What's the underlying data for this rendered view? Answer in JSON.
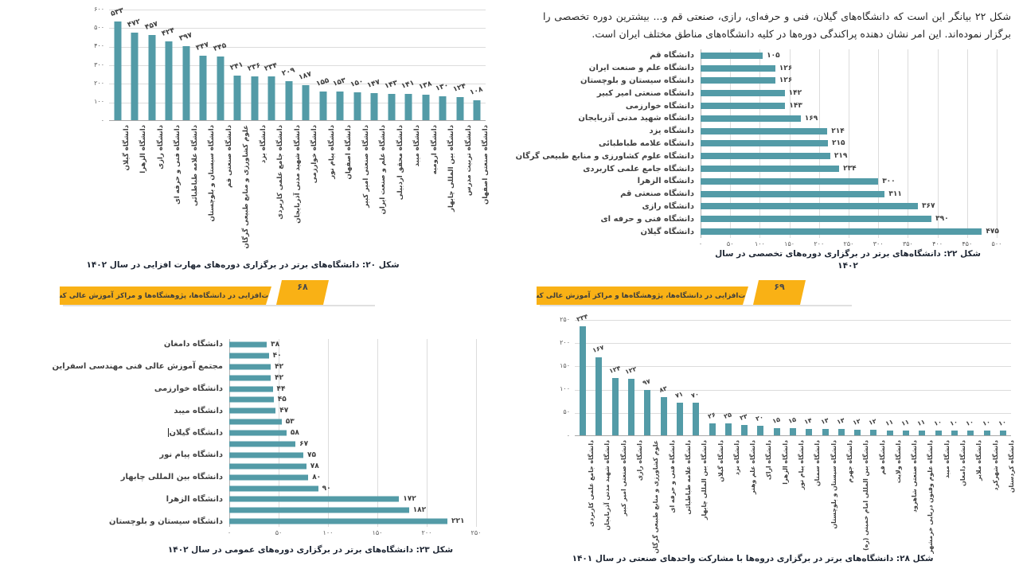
{
  "intro_text": "شکل ۲۲ بیانگر این است که دانشگاه‌های گیلان، فنی و حرفه‌ای، رازی، صنعتی قم و... بیشترین دوره تخصصی را برگزار نموده‌اند. این امر نشان دهنده پراکندگی دوره‌ها در کلیه دانشگاه‌های مناطق مختلف ایران است.",
  "banners": {
    "label": "مهارت‌افزایی در دانشگاه‌ها، پژوهشگاه‌ها و مراکز آموزش عالی کشور",
    "left": {
      "page": "۶۸"
    },
    "right": {
      "page": "۶۹"
    },
    "color": "#F9B115"
  },
  "chart_data": [
    {
      "id": "fig20",
      "type": "bar",
      "orientation": "vertical",
      "title": "شکل ۲۰: دانشگاه‌های برتر در برگزاری دوره‌های مهارت افزایی در سال ۱۴۰۲",
      "categories": [
        "دانشگاه گیلان",
        "دانشگاه الزهرا",
        "دانشگاه رازی",
        "دانشگاه فنی و حرفه ای",
        "دانشگاه علامه طباطبائی",
        "دانشگاه سیستان و بلوچستان",
        "دانشگاه صنعتی قم",
        "علوم کشاورزی و منابع طبیعی گرگان",
        "دانشگاه یزد",
        "دانشگاه جامع علمی کاربردی",
        "دانشگاه شهید مدنی آذربایجان",
        "دانشگاه خوارزمی",
        "دانشگاه پیام نور",
        "دانشگاه اصفهان",
        "دانشگاه صنعتی امیر کبیر",
        "دانشگاه علم و صنعت ایران",
        "دانشگاه محقق اردبیلی",
        "دانشگاه میبد",
        "دانشگاه ارومیه",
        "دانشگاه بین المللی چابهار",
        "دانشگاه تربیت مدرس",
        "دانشگاه صنعتی اصفهان"
      ],
      "values": [
        533,
        472,
        457,
        424,
        397,
        347,
        345,
        241,
        236,
        234,
        209,
        187,
        155,
        153,
        150,
        147,
        143,
        141,
        138,
        130,
        124,
        108
      ],
      "ylim": [
        0,
        600
      ],
      "ytick_step": 100,
      "ytick_labels": [
        "۰",
        "۱۰۰",
        "۲۰۰",
        "۳۰۰",
        "۴۰۰",
        "۵۰۰",
        "۶۰۰"
      ],
      "grid": true,
      "bar_color": "#539BA7"
    },
    {
      "id": "fig22",
      "type": "bar",
      "orientation": "horizontal",
      "title": "شکل ۲۲: دانشگاه‌های برتر در برگزاری دوره‌های تخصصی در سال ۱۴۰۲",
      "title_lines": [
        "شکل ۲۲: دانشگاه‌های برتر در برگزاری دوره‌های  تخصصی در سال",
        "۱۴۰۲"
      ],
      "categories": [
        "دانشگاه قم",
        "دانشگاه علم و صنعت ایران",
        "دانشگاه سیستان و بلوچستان",
        "دانشگاه صنعتی امیر کبیر",
        "دانشگاه خوارزمی",
        "دانشگاه شهید مدنی آذربایجان",
        "دانشگاه یزد",
        "دانشگاه علامه طباطبائی",
        "دانشگاه علوم کشاورزی و منابع طبیعی گرگان",
        "دانشگاه جامع علمی کاربردی",
        "دانشگاه الزهرا",
        "دانشگاه صنعتی قم",
        "دانشگاه رازی",
        "دانشگاه فنی و حرفه ای",
        "دانشگاه گیلان"
      ],
      "values": [
        105,
        126,
        126,
        142,
        143,
        169,
        214,
        215,
        219,
        234,
        300,
        311,
        367,
        390,
        475
      ],
      "xlim": [
        0,
        500
      ],
      "xtick_step": 50,
      "xtick_labels": [
        "۰",
        "۵۰",
        "۱۰۰",
        "۱۵۰",
        "۲۰۰",
        "۲۵۰",
        "۳۰۰",
        "۳۵۰",
        "۴۰۰",
        "۴۵۰",
        "۵۰۰"
      ],
      "grid": true,
      "bar_color": "#539BA7"
    },
    {
      "id": "fig23",
      "type": "bar",
      "orientation": "horizontal",
      "title": "شکل ۲۳: دانشگاه‌های برتر در برگزاری دوره‌های عمومی در سال ۱۴۰۲",
      "categories": [
        "دانشگاه دامغان",
        "",
        "مجتمع آموزش عالی فنی مهندسی اسفراین",
        "",
        "دانشگاه خوارزمی",
        "",
        "دانشگاه میبد",
        "",
        "دانشگاه گیلان",
        "",
        "دانشگاه پیام نور",
        "",
        "دانشگاه بین المللی چابهار",
        "",
        "دانشگاه الزهرا",
        "",
        "دانشگاه سیستان و بلوچستان"
      ],
      "values": [
        38,
        40,
        42,
        42,
        44,
        45,
        47,
        53,
        58,
        67,
        75,
        78,
        80,
        90,
        172,
        182,
        221
      ],
      "xlim": [
        0,
        250
      ],
      "xtick_step": 50,
      "xtick_labels": [
        "۰",
        "۵۰",
        "۱۰۰",
        "۱۵۰",
        "۲۰۰",
        "۲۵۰"
      ],
      "text_cursor_after_index": 8,
      "grid": true,
      "bar_color": "#539BA7"
    },
    {
      "id": "fig28",
      "type": "bar",
      "orientation": "vertical",
      "title": "شکل ۲۸: دانشگاه‌های برتر در برگزاری دروه‌ها با مشارکت واحدهای صنعتی در سال ۱۴۰۱",
      "categories": [
        "دانشگاه جامع علمی کاربردی",
        "دانشگاه شهید مدنی آذربایجان",
        "دانشگاه صنعتی امیر کبیر",
        "دانشگاه رازی",
        "علوم کشاورزی و منابع طبیعی گرگان",
        "دانشگاه فنی و حرفه ای",
        "دانشگاه علامه طباطبائی",
        "دانشگاه بین المللی چابهار",
        "دانشگاه گیلان",
        "دانشگاه یزد",
        "دانشگاه علم وهنر",
        "دانشگاه اراک",
        "دانشگاه الزهرا",
        "دانشگاه پیام نور",
        "دانشگاه سمنان",
        "دانشگاه سیستان و بلوچستان",
        "دانشگاه جهرم",
        "دانشگاه بین المللی امام خمینی (ره)",
        "دانشگاه قم",
        "دانشگاه ولایت",
        "دانشگاه صنعتی شاهرود",
        "دانشگاه علوم وفنون دریایی خرمشهر",
        "دانشگاه میبد",
        "دانشگاه دامغان",
        "دانشگاه ملایر",
        "دانشگاه شهرکرد",
        "دانشگاه کردستان"
      ],
      "values": [
        234,
        167,
        124,
        122,
        97,
        83,
        71,
        70,
        26,
        25,
        23,
        20,
        15,
        15,
        14,
        13,
        13,
        12,
        12,
        11,
        11,
        11,
        10,
        10,
        10,
        10,
        10
      ],
      "ylim": [
        0,
        250
      ],
      "ytick_step": 50,
      "ytick_labels": [
        "۰",
        "۵۰",
        "۱۰۰",
        "۱۵۰",
        "۲۰۰",
        "۲۵۰"
      ],
      "grid": true,
      "bar_color": "#539BA7"
    }
  ]
}
